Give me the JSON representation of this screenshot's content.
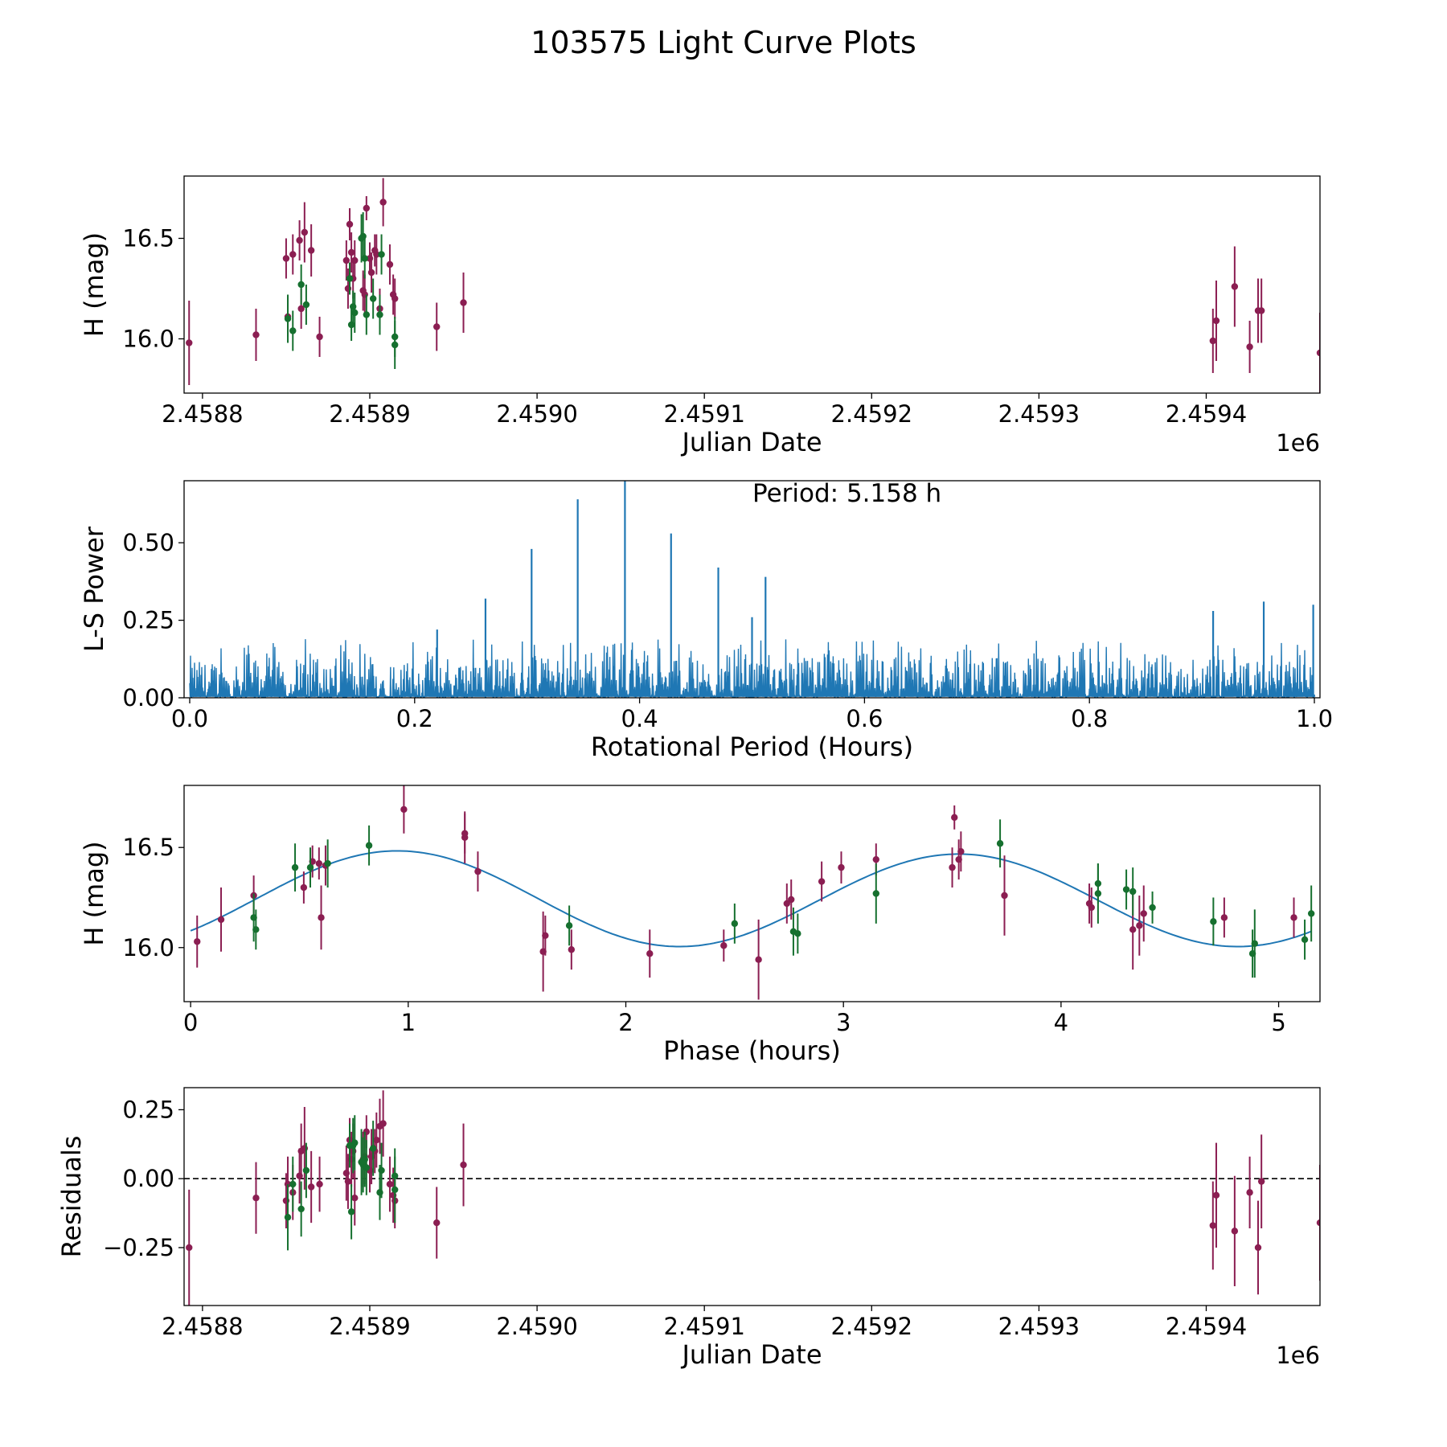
{
  "title": "103575 Light Curve Plots",
  "colors": {
    "series_a": "#8b1e52",
    "series_b": "#16702f",
    "fit": "#1f77b4",
    "zero_line": "#000000"
  },
  "chart_data": [
    {
      "type": "scatter",
      "name": "light-curve",
      "xlabel": "Julian Date",
      "ylabel": "H (mag)",
      "xlim": [
        2458789,
        2459468
      ],
      "ylim": [
        15.73,
        16.81
      ],
      "offset_text": "1e6",
      "xticks": [
        2458800,
        2458900,
        2459000,
        2459100,
        2459200,
        2459300,
        2459400
      ],
      "xtick_labels": [
        "2.4588",
        "2.4589",
        "2.4590",
        "2.4591",
        "2.4592",
        "2.4593",
        "2.4594"
      ],
      "yticks": [
        16.0,
        16.5
      ],
      "ytick_labels": [
        "16.0",
        "16.5"
      ],
      "series": [
        {
          "name": "series-a",
          "color": "#8b1e52",
          "points": [
            [
              2458792,
              15.98,
              0.21
            ],
            [
              2458832,
              16.02,
              0.13
            ],
            [
              2458850,
              16.4,
              0.1
            ],
            [
              2458851,
              16.11,
              0.1
            ],
            [
              2458854,
              16.42,
              0.1
            ],
            [
              2458858,
              16.49,
              0.1
            ],
            [
              2458859,
              16.15,
              0.1
            ],
            [
              2458861,
              16.53,
              0.15
            ],
            [
              2458865,
              16.44,
              0.13
            ],
            [
              2458870,
              16.01,
              0.1
            ],
            [
              2458886,
              16.39,
              0.1
            ],
            [
              2458887,
              16.25,
              0.1
            ],
            [
              2458888,
              16.57,
              0.08
            ],
            [
              2458889,
              16.43,
              0.1
            ],
            [
              2458890,
              16.3,
              0.1
            ],
            [
              2458891,
              16.39,
              0.1
            ],
            [
              2458896,
              16.24,
              0.1
            ],
            [
              2458897,
              16.22,
              0.1
            ],
            [
              2458898,
              16.65,
              0.06
            ],
            [
              2458900,
              16.4,
              0.08
            ],
            [
              2458901,
              16.33,
              0.1
            ],
            [
              2458903,
              16.44,
              0.08
            ],
            [
              2458904,
              16.42,
              0.1
            ],
            [
              2458906,
              16.15,
              0.1
            ],
            [
              2458908,
              16.68,
              0.12
            ],
            [
              2458912,
              16.37,
              0.1
            ],
            [
              2458914,
              16.22,
              0.1
            ],
            [
              2458915,
              16.2,
              0.1
            ],
            [
              2458940,
              16.06,
              0.12
            ],
            [
              2458956,
              16.18,
              0.15
            ],
            [
              2459404,
              15.99,
              0.16
            ],
            [
              2459406,
              16.09,
              0.2
            ],
            [
              2459417,
              16.26,
              0.2
            ],
            [
              2459426,
              15.96,
              0.13
            ],
            [
              2459431,
              16.14,
              0.16
            ],
            [
              2459433,
              16.14,
              0.16
            ],
            [
              2459468,
              15.93,
              0.2
            ]
          ]
        },
        {
          "name": "series-b",
          "color": "#16702f",
          "points": [
            [
              2458851,
              16.1,
              0.12
            ],
            [
              2458854,
              16.04,
              0.1
            ],
            [
              2458859,
              16.27,
              0.1
            ],
            [
              2458862,
              16.17,
              0.1
            ],
            [
              2458888,
              16.3,
              0.08
            ],
            [
              2458889,
              16.07,
              0.08
            ],
            [
              2458890,
              16.16,
              0.08
            ],
            [
              2458891,
              16.13,
              0.1
            ],
            [
              2458895,
              16.5,
              0.12
            ],
            [
              2458896,
              16.51,
              0.12
            ],
            [
              2458897,
              16.4,
              0.1
            ],
            [
              2458898,
              16.12,
              0.1
            ],
            [
              2458902,
              16.2,
              0.1
            ],
            [
              2458906,
              16.12,
              0.1
            ],
            [
              2458907,
              16.42,
              0.1
            ],
            [
              2458915,
              16.01,
              0.1
            ],
            [
              2458915,
              15.97,
              0.12
            ]
          ]
        }
      ]
    },
    {
      "type": "line",
      "name": "periodogram",
      "xlabel": "Rotational Period (Hours)",
      "ylabel": "L-S Power",
      "xlim": [
        -0.005,
        1.005
      ],
      "ylim": [
        0.0,
        0.7
      ],
      "xticks": [
        0.0,
        0.2,
        0.4,
        0.6,
        0.8,
        1.0
      ],
      "xtick_labels": [
        "0.0",
        "0.2",
        "0.4",
        "0.6",
        "0.8",
        "1.0"
      ],
      "yticks": [
        0.0,
        0.25,
        0.5
      ],
      "ytick_labels": [
        "0.00",
        "0.25",
        "0.50"
      ],
      "annotation": "Period: 5.158 h",
      "baseline_noise": {
        "x_range": [
          0.0,
          1.0
        ],
        "typical_peak": 0.16,
        "max_background": 0.2
      },
      "peaks": [
        {
          "x": 0.263,
          "y": 0.32
        },
        {
          "x": 0.304,
          "y": 0.48
        },
        {
          "x": 0.345,
          "y": 0.64
        },
        {
          "x": 0.387,
          "y": 0.7
        },
        {
          "x": 0.428,
          "y": 0.53
        },
        {
          "x": 0.47,
          "y": 0.42
        },
        {
          "x": 0.512,
          "y": 0.39
        },
        {
          "x": 0.22,
          "y": 0.22
        },
        {
          "x": 0.5,
          "y": 0.26
        },
        {
          "x": 0.91,
          "y": 0.28
        },
        {
          "x": 0.955,
          "y": 0.31
        },
        {
          "x": 0.999,
          "y": 0.3
        }
      ]
    },
    {
      "type": "scatter",
      "name": "phased-light-curve",
      "xlabel": "Phase (hours)",
      "ylabel": "H (mag)",
      "xlim": [
        -0.03,
        5.19
      ],
      "ylim": [
        15.73,
        16.81
      ],
      "xticks": [
        0,
        1,
        2,
        3,
        4,
        5
      ],
      "xtick_labels": [
        "0",
        "1",
        "2",
        "3",
        "4",
        "5"
      ],
      "yticks": [
        16.0,
        16.5
      ],
      "ytick_labels": [
        "16.0",
        "16.5"
      ],
      "fit_curve": {
        "mean": 16.24,
        "amp1": 0.235,
        "phase1": 2.21,
        "period": 5.158
      },
      "series": [
        {
          "name": "series-a",
          "color": "#8b1e52",
          "points": [
            [
              0.03,
              16.03,
              0.13
            ],
            [
              0.14,
              16.14,
              0.16
            ],
            [
              0.29,
              16.26,
              0.1
            ],
            [
              0.52,
              16.3,
              0.08
            ],
            [
              0.56,
              16.43,
              0.08
            ],
            [
              0.59,
              16.42,
              0.08
            ],
            [
              0.6,
              16.15,
              0.16
            ],
            [
              0.62,
              16.41,
              0.1
            ],
            [
              0.98,
              16.69,
              0.12
            ],
            [
              1.26,
              16.55,
              0.13
            ],
            [
              1.26,
              16.57,
              0.1
            ],
            [
              1.32,
              16.38,
              0.1
            ],
            [
              1.62,
              15.98,
              0.2
            ],
            [
              1.63,
              16.06,
              0.1
            ],
            [
              1.75,
              15.99,
              0.1
            ],
            [
              2.11,
              15.97,
              0.12
            ],
            [
              2.45,
              16.01,
              0.08
            ],
            [
              2.61,
              15.94,
              0.2
            ],
            [
              2.74,
              16.22,
              0.1
            ],
            [
              2.76,
              16.24,
              0.1
            ],
            [
              2.9,
              16.33,
              0.1
            ],
            [
              2.99,
              16.4,
              0.08
            ],
            [
              3.15,
              16.44,
              0.08
            ],
            [
              3.5,
              16.4,
              0.1
            ],
            [
              3.51,
              16.65,
              0.06
            ],
            [
              3.53,
              16.44,
              0.1
            ],
            [
              3.54,
              16.48,
              0.1
            ],
            [
              3.74,
              16.26,
              0.2
            ],
            [
              4.13,
              16.22,
              0.1
            ],
            [
              4.14,
              16.2,
              0.1
            ],
            [
              4.33,
              16.09,
              0.2
            ],
            [
              4.36,
              16.11,
              0.15
            ],
            [
              4.38,
              16.17,
              0.14
            ],
            [
              4.75,
              16.15,
              0.1
            ],
            [
              5.07,
              16.15,
              0.1
            ]
          ]
        },
        {
          "name": "series-b",
          "color": "#16702f",
          "points": [
            [
              0.29,
              16.15,
              0.12
            ],
            [
              0.3,
              16.09,
              0.1
            ],
            [
              0.48,
              16.4,
              0.12
            ],
            [
              0.55,
              16.4,
              0.1
            ],
            [
              0.63,
              16.42,
              0.12
            ],
            [
              0.82,
              16.51,
              0.1
            ],
            [
              1.74,
              16.11,
              0.1
            ],
            [
              2.5,
              16.12,
              0.1
            ],
            [
              2.77,
              16.08,
              0.12
            ],
            [
              2.79,
              16.07,
              0.1
            ],
            [
              3.15,
              16.27,
              0.15
            ],
            [
              3.72,
              16.52,
              0.12
            ],
            [
              4.17,
              16.32,
              0.1
            ],
            [
              4.17,
              16.27,
              0.15
            ],
            [
              4.3,
              16.29,
              0.1
            ],
            [
              4.33,
              16.28,
              0.12
            ],
            [
              4.42,
              16.2,
              0.08
            ],
            [
              4.7,
              16.13,
              0.12
            ],
            [
              4.88,
              15.97,
              0.12
            ],
            [
              4.89,
              16.02,
              0.17
            ],
            [
              5.12,
              16.04,
              0.1
            ],
            [
              5.15,
              16.17,
              0.14
            ]
          ]
        }
      ]
    },
    {
      "type": "scatter",
      "name": "residuals",
      "xlabel": "Julian Date",
      "ylabel": "Residuals",
      "xlim": [
        2458789,
        2459468
      ],
      "ylim": [
        -0.46,
        0.33
      ],
      "offset_text": "1e6",
      "xticks": [
        2458800,
        2458900,
        2459000,
        2459100,
        2459200,
        2459300,
        2459400
      ],
      "xtick_labels": [
        "2.4588",
        "2.4589",
        "2.4590",
        "2.4591",
        "2.4592",
        "2.4593",
        "2.4594"
      ],
      "yticks": [
        0.25,
        0.0,
        -0.25
      ],
      "ytick_labels": [
        "0.25",
        "0.00",
        "−0.25"
      ],
      "zero_line": 0.0,
      "series": [
        {
          "name": "series-a",
          "color": "#8b1e52",
          "points": [
            [
              2458792,
              -0.25,
              0.21
            ],
            [
              2458832,
              -0.07,
              0.13
            ],
            [
              2458850,
              -0.08,
              0.1
            ],
            [
              2458851,
              -0.02,
              0.1
            ],
            [
              2458854,
              -0.05,
              0.1
            ],
            [
              2458858,
              0.01,
              0.1
            ],
            [
              2458859,
              0.1,
              0.1
            ],
            [
              2458861,
              0.11,
              0.15
            ],
            [
              2458865,
              -0.03,
              0.13
            ],
            [
              2458870,
              -0.02,
              0.1
            ],
            [
              2458886,
              0.02,
              0.1
            ],
            [
              2458887,
              -0.01,
              0.1
            ],
            [
              2458888,
              0.14,
              0.08
            ],
            [
              2458889,
              0.07,
              0.1
            ],
            [
              2458890,
              0.1,
              0.1
            ],
            [
              2458891,
              -0.07,
              0.1
            ],
            [
              2458896,
              0.07,
              0.1
            ],
            [
              2458897,
              0.08,
              0.1
            ],
            [
              2458898,
              0.17,
              0.06
            ],
            [
              2458900,
              0.03,
              0.08
            ],
            [
              2458901,
              0.08,
              0.1
            ],
            [
              2458903,
              0.1,
              0.08
            ],
            [
              2458904,
              0.14,
              0.1
            ],
            [
              2458906,
              0.19,
              0.1
            ],
            [
              2458908,
              0.2,
              0.12
            ],
            [
              2458912,
              -0.02,
              0.1
            ],
            [
              2458914,
              -0.06,
              0.1
            ],
            [
              2458915,
              -0.08,
              0.1
            ],
            [
              2458940,
              -0.16,
              0.13
            ],
            [
              2458956,
              0.05,
              0.15
            ],
            [
              2459404,
              -0.17,
              0.16
            ],
            [
              2459406,
              -0.06,
              0.19
            ],
            [
              2459417,
              -0.19,
              0.2
            ],
            [
              2459426,
              -0.05,
              0.13
            ],
            [
              2459431,
              -0.25,
              0.17
            ],
            [
              2459433,
              -0.01,
              0.17
            ],
            [
              2459468,
              -0.16,
              0.21
            ]
          ]
        },
        {
          "name": "series-b",
          "color": "#16702f",
          "points": [
            [
              2458851,
              -0.14,
              0.12
            ],
            [
              2458854,
              -0.02,
              0.1
            ],
            [
              2458859,
              -0.11,
              0.1
            ],
            [
              2458862,
              0.03,
              0.1
            ],
            [
              2458888,
              0.12,
              0.08
            ],
            [
              2458889,
              -0.12,
              0.1
            ],
            [
              2458890,
              0.12,
              0.1
            ],
            [
              2458891,
              0.13,
              0.1
            ],
            [
              2458895,
              0.06,
              0.12
            ],
            [
              2458896,
              0.05,
              0.1
            ],
            [
              2458897,
              0.07,
              0.1
            ],
            [
              2458898,
              0.04,
              0.1
            ],
            [
              2458902,
              0.11,
              0.1
            ],
            [
              2458906,
              -0.05,
              0.1
            ],
            [
              2458907,
              0.03,
              0.1
            ],
            [
              2458915,
              0.01,
              0.1
            ],
            [
              2458915,
              -0.04,
              0.12
            ]
          ]
        }
      ]
    }
  ]
}
